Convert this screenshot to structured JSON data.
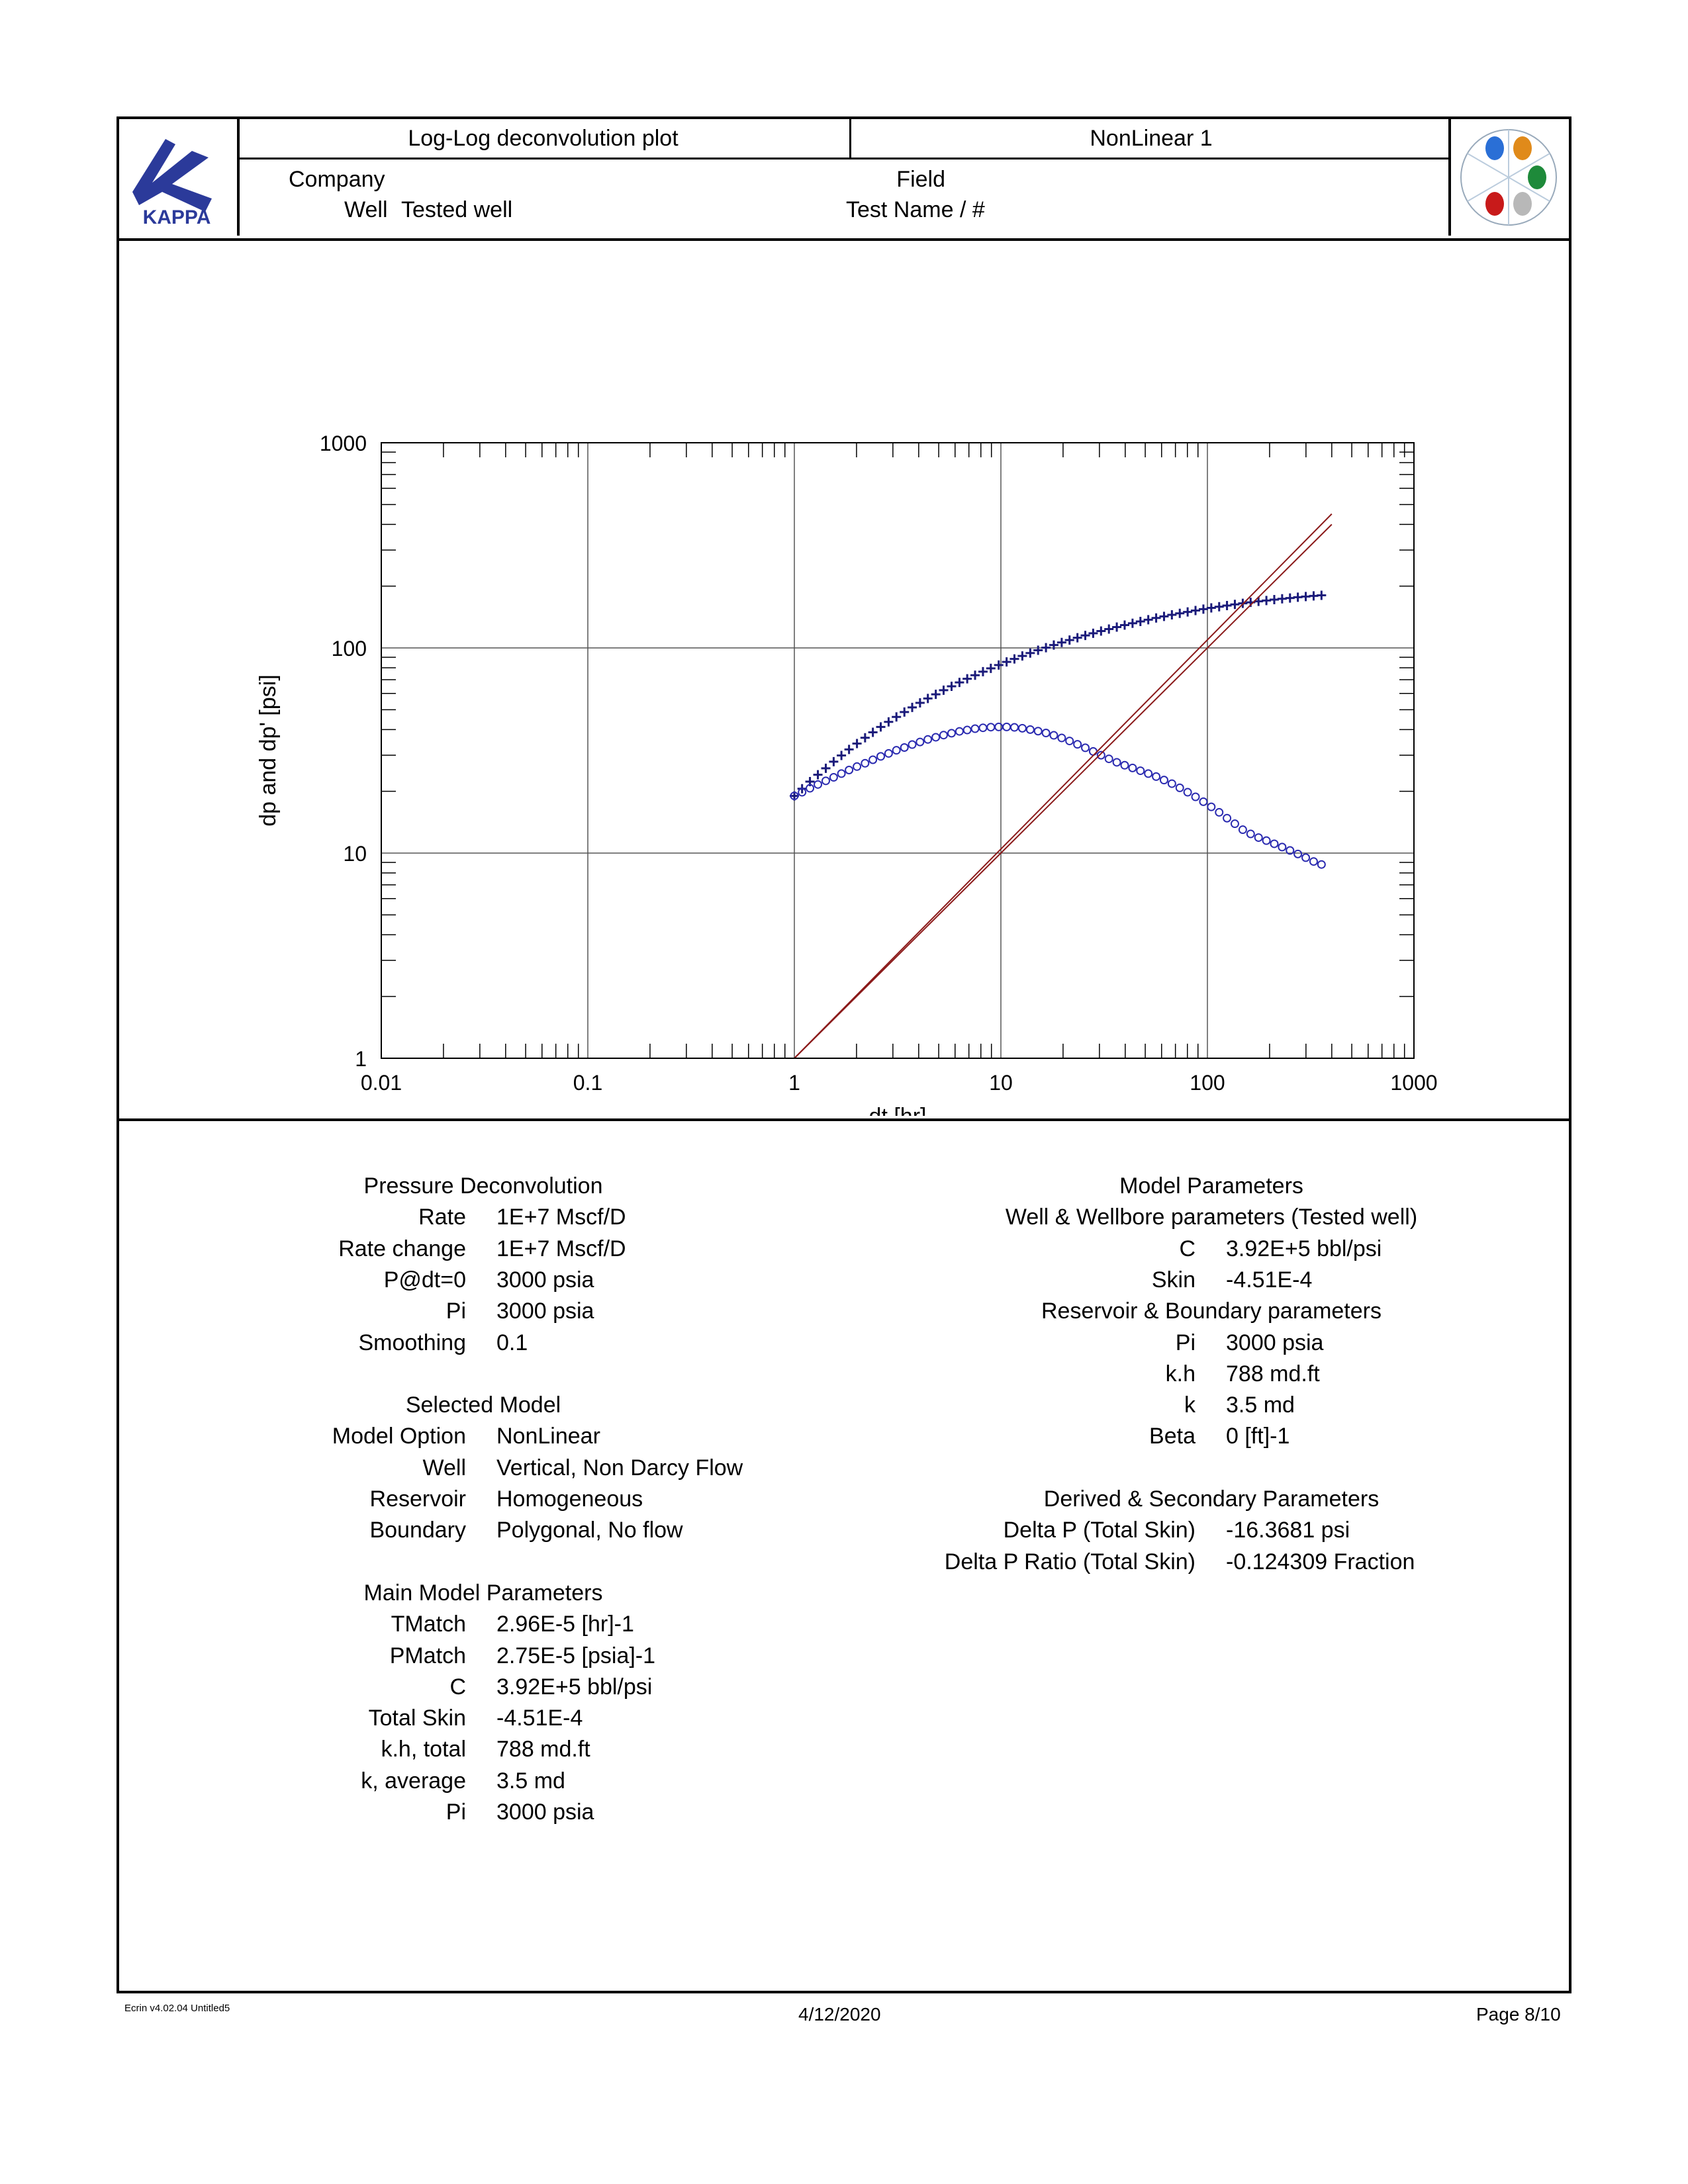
{
  "header": {
    "logo_text": "KAPPA",
    "plot_title": "Log-Log deconvolution plot",
    "analysis_name": "NonLinear 1",
    "company_label": "Company",
    "well_label": "Well",
    "well_value": "Tested well",
    "field_label": "Field",
    "test_label": "Test Name / #"
  },
  "chart_data": {
    "type": "scatter",
    "xlabel": "dt [hr]",
    "ylabel": "dp and dp' [psi]",
    "xscale": "log",
    "yscale": "log",
    "xlim": [
      0.01,
      1000
    ],
    "ylim": [
      1,
      1000
    ],
    "grid": true,
    "x_ticks": [
      "0.01",
      "0.1",
      "1",
      "10",
      "100",
      "1000"
    ],
    "y_ticks": [
      "1",
      "10",
      "100",
      "1000"
    ],
    "colors": {
      "pressure": "#1a1a7a",
      "derivative": "#2a2ab0",
      "unit_slope": "#8b1a1a"
    },
    "series": [
      {
        "marker": "cross",
        "x": [
          1.0,
          1.09,
          1.19,
          1.3,
          1.42,
          1.55,
          1.69,
          1.84,
          2.01,
          2.2,
          2.4,
          2.62,
          2.86,
          3.12,
          3.41,
          3.72,
          4.06,
          4.43,
          4.84,
          5.28,
          5.77,
          6.3,
          6.87,
          7.5,
          8.19,
          8.94,
          9.76,
          10.66,
          11.63,
          12.7,
          13.87,
          15.14,
          16.53,
          18.04,
          19.7,
          21.5,
          23.48,
          25.63,
          27.98,
          30.55,
          33.35,
          36.41,
          39.75,
          43.4,
          47.38,
          51.72,
          56.47,
          61.65,
          67.3,
          73.48,
          80.22,
          87.58,
          95.61,
          104.4,
          114.0,
          124.4,
          135.8,
          148.3,
          161.9,
          176.8,
          193.0,
          210.7,
          230.0,
          251.1,
          274.1,
          299.3,
          326.8,
          356.7
        ],
        "y": [
          19,
          20.6,
          22.3,
          24.1,
          25.9,
          27.9,
          29.9,
          32.0,
          34.2,
          36.5,
          38.8,
          41.2,
          43.6,
          46.1,
          48.7,
          51.3,
          54.0,
          56.7,
          59.4,
          62.2,
          65.0,
          67.9,
          70.7,
          73.6,
          76.6,
          79.5,
          82.5,
          85.5,
          88.4,
          91.4,
          94.4,
          97.4,
          100.3,
          103.3,
          106.3,
          109.2,
          112.1,
          115.0,
          117.9,
          120.8,
          123.6,
          126.4,
          129.2,
          131.9,
          134.6,
          137.3,
          139.9,
          142.5,
          145.0,
          147.4,
          149.8,
          152.2,
          154.5,
          156.7,
          158.8,
          160.9,
          162.9,
          164.9,
          166.8,
          168.6,
          170.3,
          172.0,
          173.6,
          175.1,
          176.6,
          178.0,
          179.3,
          180.5
        ]
      },
      {
        "marker": "circle",
        "x": [
          1.0,
          1.09,
          1.19,
          1.3,
          1.42,
          1.55,
          1.69,
          1.84,
          2.01,
          2.2,
          2.4,
          2.62,
          2.86,
          3.12,
          3.41,
          3.72,
          4.06,
          4.43,
          4.84,
          5.28,
          5.77,
          6.3,
          6.87,
          7.5,
          8.19,
          8.94,
          9.76,
          10.66,
          11.63,
          12.7,
          13.87,
          15.14,
          16.53,
          18.04,
          19.7,
          21.5,
          23.48,
          25.63,
          27.98,
          30.55,
          33.35,
          36.41,
          39.75,
          43.4,
          47.38,
          51.72,
          56.47,
          61.65,
          67.3,
          73.48,
          80.22,
          87.58,
          95.61,
          104.4,
          114.0,
          124.4,
          135.8,
          148.3,
          161.9,
          176.8,
          193.0,
          210.7,
          230.0,
          251.1,
          274.1,
          299.3,
          326.8,
          356.7
        ],
        "y": [
          19,
          19.8,
          20.7,
          21.6,
          22.5,
          23.4,
          24.4,
          25.4,
          26.4,
          27.4,
          28.5,
          29.6,
          30.6,
          31.7,
          32.7,
          33.8,
          34.8,
          35.8,
          36.7,
          37.6,
          38.4,
          39.2,
          39.8,
          40.4,
          40.8,
          41.1,
          41.2,
          41.2,
          41.0,
          40.6,
          40.0,
          39.3,
          38.5,
          37.5,
          36.4,
          35.2,
          33.9,
          32.6,
          31.3,
          30.0,
          28.8,
          27.7,
          26.8,
          26.0,
          25.2,
          24.4,
          23.6,
          22.7,
          21.8,
          20.8,
          19.8,
          18.8,
          17.8,
          16.8,
          15.8,
          14.8,
          13.9,
          13.0,
          12.4,
          11.9,
          11.5,
          11.1,
          10.7,
          10.3,
          9.9,
          9.5,
          9.1,
          8.8
        ]
      },
      {
        "marker": "line",
        "x": [
          1,
          400
        ],
        "y": [
          1,
          400
        ]
      },
      {
        "marker": "line",
        "x": [
          1,
          400
        ],
        "y": [
          1,
          450
        ]
      }
    ]
  },
  "pressure_deconvolution": {
    "title": "Pressure Deconvolution",
    "rows": [
      {
        "label": "Rate",
        "value": "1E+7 Mscf/D"
      },
      {
        "label": "Rate change",
        "value": "1E+7 Mscf/D"
      },
      {
        "label": "P@dt=0",
        "value": "3000 psia"
      },
      {
        "label": "Pi",
        "value": "3000 psia"
      },
      {
        "label": "Smoothing",
        "value": "0.1"
      }
    ]
  },
  "selected_model": {
    "title": "Selected Model",
    "rows": [
      {
        "label": "Model Option",
        "value": "NonLinear"
      },
      {
        "label": "Well",
        "value": "Vertical, Non Darcy Flow"
      },
      {
        "label": "Reservoir",
        "value": "Homogeneous"
      },
      {
        "label": "Boundary",
        "value": "Polygonal, No flow"
      }
    ]
  },
  "main_model_parameters": {
    "title": "Main Model Parameters",
    "rows": [
      {
        "label": "TMatch",
        "value": "2.96E-5 [hr]-1"
      },
      {
        "label": "PMatch",
        "value": "2.75E-5 [psia]-1"
      },
      {
        "label": "C",
        "value": "3.92E+5 bbl/psi"
      },
      {
        "label": "Total Skin",
        "value": "-4.51E-4"
      },
      {
        "label": "k.h, total",
        "value": "788 md.ft"
      },
      {
        "label": "k, average",
        "value": "3.5 md"
      },
      {
        "label": "Pi",
        "value": "3000 psia"
      }
    ]
  },
  "model_parameters": {
    "title": "Model Parameters",
    "well_title": "Well & Wellbore parameters (Tested well)",
    "well_rows": [
      {
        "label": "C",
        "value": "3.92E+5 bbl/psi"
      },
      {
        "label": "Skin",
        "value": "-4.51E-4"
      }
    ],
    "reservoir_title": "Reservoir & Boundary parameters",
    "reservoir_rows": [
      {
        "label": "Pi",
        "value": "3000 psia"
      },
      {
        "label": "k.h",
        "value": "788 md.ft"
      },
      {
        "label": "k",
        "value": "3.5 md"
      },
      {
        "label": "Beta",
        "value": "0 [ft]-1"
      }
    ]
  },
  "derived_parameters": {
    "title": "Derived & Secondary Parameters",
    "rows": [
      {
        "label": "Delta P (Total Skin)",
        "value": "-16.3681 psi"
      },
      {
        "label": "Delta P Ratio (Total Skin)",
        "value": "-0.124309 Fraction"
      }
    ]
  },
  "footer": {
    "version": "Ecrin  v4.02.04 Untitled5",
    "date": "4/12/2020",
    "page": "Page 8/10"
  }
}
